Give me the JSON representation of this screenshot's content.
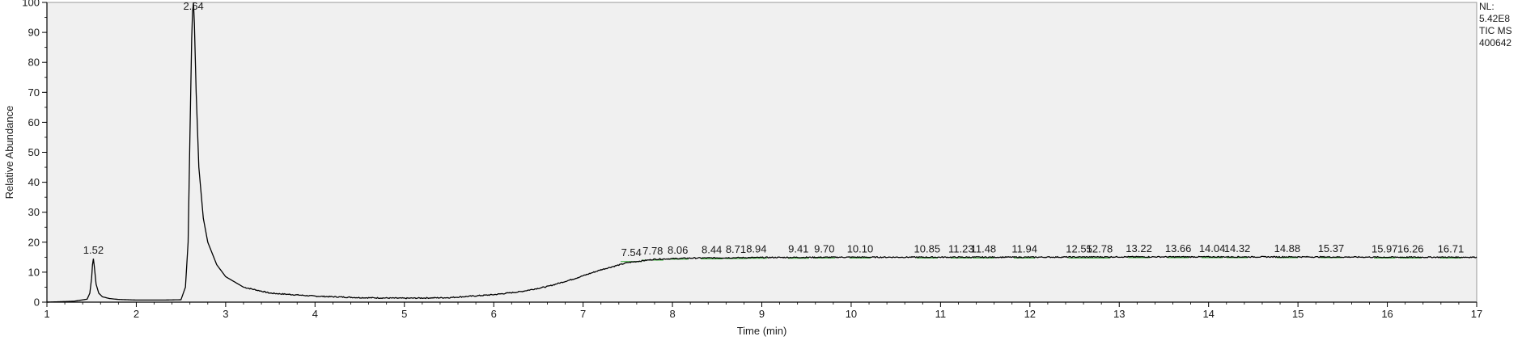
{
  "chart_data": {
    "type": "line",
    "title": "",
    "xlabel": "Time (min)",
    "ylabel": "Relative Abundance",
    "xlim": [
      1,
      17
    ],
    "ylim": [
      0,
      100
    ],
    "x_ticks": [
      1,
      2,
      3,
      4,
      5,
      6,
      7,
      8,
      9,
      10,
      11,
      12,
      13,
      14,
      15,
      16,
      17
    ],
    "y_ticks": [
      0,
      10,
      20,
      30,
      40,
      50,
      60,
      70,
      80,
      90,
      100
    ],
    "plot_background": "#f0f0f0",
    "line_color": "#000000",
    "baseline_marker_color": "#33aa33",
    "grid": false,
    "legend": "none",
    "info_lines": [
      "NL:",
      "5.42E8",
      "TIC  MS",
      "400642"
    ],
    "series": [
      {
        "x": [
          1.0,
          1.3,
          1.45,
          1.48,
          1.5,
          1.51,
          1.52,
          1.53,
          1.55,
          1.58,
          1.62,
          1.7,
          1.8,
          2.0,
          2.3,
          2.5,
          2.55,
          2.58,
          2.6,
          2.62,
          2.63,
          2.64,
          2.65,
          2.67,
          2.7,
          2.75,
          2.8,
          2.9,
          3.0,
          3.2,
          3.5,
          4.0,
          4.5,
          5.0,
          5.5,
          6.0,
          6.3,
          6.6,
          6.9,
          7.2,
          7.5,
          7.8,
          8.2,
          8.6,
          9.0,
          10.0,
          11.0,
          12.0,
          13.0,
          14.0,
          15.0,
          16.0,
          17.0
        ],
        "y": [
          0.0,
          0.3,
          1.0,
          3.0,
          8.0,
          12.5,
          14.5,
          12.0,
          6.0,
          3.0,
          1.8,
          1.2,
          0.9,
          0.7,
          0.7,
          0.8,
          5.0,
          20.0,
          55.0,
          88.0,
          97.0,
          100.0,
          93.0,
          70.0,
          45.0,
          28.0,
          20.0,
          12.5,
          8.5,
          5.0,
          3.0,
          2.0,
          1.5,
          1.3,
          1.5,
          2.5,
          3.5,
          5.2,
          7.8,
          10.8,
          13.2,
          14.3,
          14.7,
          14.8,
          14.9,
          15.0,
          15.0,
          15.0,
          15.1,
          15.1,
          15.1,
          15.0,
          15.0
        ]
      }
    ],
    "peak_labels": [
      {
        "label": "1.52",
        "x": 1.52,
        "y": 14.5
      },
      {
        "label": "2.64",
        "x": 2.64,
        "y": 100
      },
      {
        "label": "7.54",
        "x": 7.54,
        "y": 13.8
      },
      {
        "label": "7.78",
        "x": 7.78,
        "y": 14.3
      },
      {
        "label": "8.06",
        "x": 8.06,
        "y": 14.6
      },
      {
        "label": "8.44",
        "x": 8.44,
        "y": 14.7
      },
      {
        "label": "8.71",
        "x": 8.71,
        "y": 14.8
      },
      {
        "label": "8.94",
        "x": 8.94,
        "y": 14.9
      },
      {
        "label": "9.41",
        "x": 9.41,
        "y": 14.9
      },
      {
        "label": "9.70",
        "x": 9.7,
        "y": 15.0
      },
      {
        "label": "10.10",
        "x": 10.1,
        "y": 15.0
      },
      {
        "label": "10.85",
        "x": 10.85,
        "y": 15.0
      },
      {
        "label": "11.23",
        "x": 11.23,
        "y": 15.0
      },
      {
        "label": "11.48",
        "x": 11.48,
        "y": 15.0
      },
      {
        "label": "11.94",
        "x": 11.94,
        "y": 15.0
      },
      {
        "label": "12.55",
        "x": 12.55,
        "y": 15.0
      },
      {
        "label": "12.78",
        "x": 12.78,
        "y": 15.0
      },
      {
        "label": "13.22",
        "x": 13.22,
        "y": 15.1
      },
      {
        "label": "13.66",
        "x": 13.66,
        "y": 15.1
      },
      {
        "label": "14.04",
        "x": 14.04,
        "y": 15.1
      },
      {
        "label": "14.32",
        "x": 14.32,
        "y": 15.1
      },
      {
        "label": "14.88",
        "x": 14.88,
        "y": 15.1
      },
      {
        "label": "15.37",
        "x": 15.37,
        "y": 15.1
      },
      {
        "label": "15.97",
        "x": 15.97,
        "y": 15.0
      },
      {
        "label": "16.26",
        "x": 16.26,
        "y": 15.0
      },
      {
        "label": "16.71",
        "x": 16.71,
        "y": 15.0
      }
    ]
  }
}
